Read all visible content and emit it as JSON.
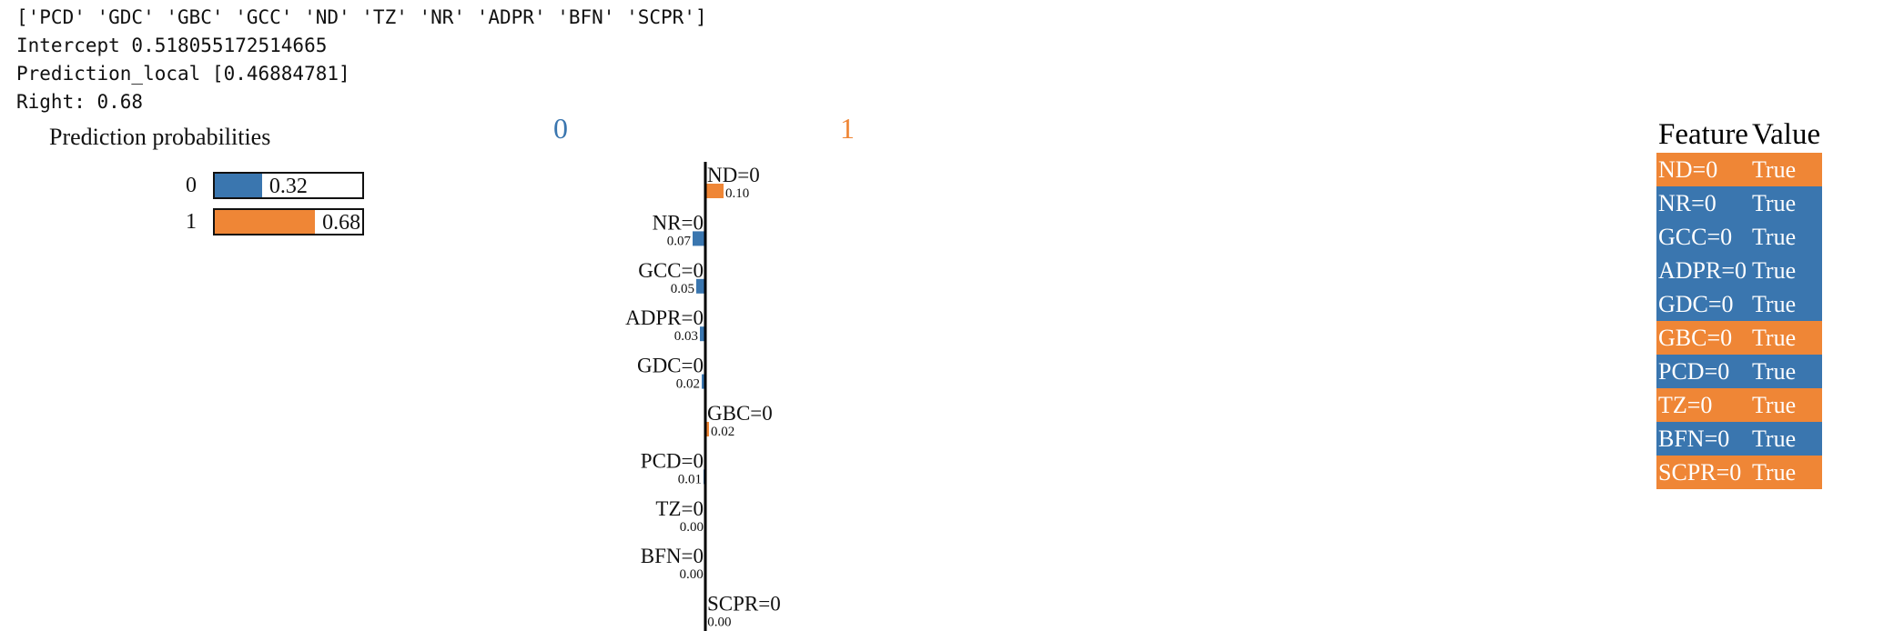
{
  "text_output": {
    "feature_list": "['PCD' 'GDC' 'GBC' 'GCC' 'ND' 'TZ' 'NR' 'ADPR' 'BFN' 'SCPR']",
    "intercept": "Intercept 0.518055172514665",
    "prediction_local": "Prediction_local [0.46884781]",
    "right": "Right: 0.68"
  },
  "colors": {
    "class0": "#3a76af",
    "class1": "#ef8636"
  },
  "chart_data": [
    {
      "type": "bar",
      "title": "Prediction probabilities",
      "categories": [
        "0",
        "1"
      ],
      "values": [
        0.32,
        0.68
      ],
      "value_labels": [
        "0.32",
        "0.68"
      ],
      "xlim": [
        0,
        1
      ]
    },
    {
      "type": "bar",
      "class_labels": [
        "0",
        "1"
      ],
      "categories": [
        "ND=0",
        "NR=0",
        "GCC=0",
        "ADPR=0",
        "GDC=0",
        "GBC=0",
        "PCD=0",
        "TZ=0",
        "BFN=0",
        "SCPR=0"
      ],
      "values": [
        0.1,
        -0.07,
        -0.05,
        -0.03,
        -0.02,
        0.02,
        -0.01,
        0.0,
        -0.001,
        0.001
      ],
      "value_labels": [
        "0.10",
        "0.07",
        "0.05",
        "0.03",
        "0.02",
        "0.02",
        "0.01",
        "0.00",
        "0.00",
        "0.00"
      ]
    }
  ],
  "feature_table": {
    "headers": [
      "Feature",
      "Value"
    ],
    "rows": [
      {
        "feature": "ND=0",
        "value": "True",
        "class": 1
      },
      {
        "feature": "NR=0",
        "value": "True",
        "class": 0
      },
      {
        "feature": "GCC=0",
        "value": "True",
        "class": 0
      },
      {
        "feature": "ADPR=0",
        "value": "True",
        "class": 0
      },
      {
        "feature": "GDC=0",
        "value": "True",
        "class": 0
      },
      {
        "feature": "GBC=0",
        "value": "True",
        "class": 1
      },
      {
        "feature": "PCD=0",
        "value": "True",
        "class": 0
      },
      {
        "feature": "TZ=0",
        "value": "True",
        "class": 1
      },
      {
        "feature": "BFN=0",
        "value": "True",
        "class": 0
      },
      {
        "feature": "SCPR=0",
        "value": "True",
        "class": 1
      }
    ]
  }
}
